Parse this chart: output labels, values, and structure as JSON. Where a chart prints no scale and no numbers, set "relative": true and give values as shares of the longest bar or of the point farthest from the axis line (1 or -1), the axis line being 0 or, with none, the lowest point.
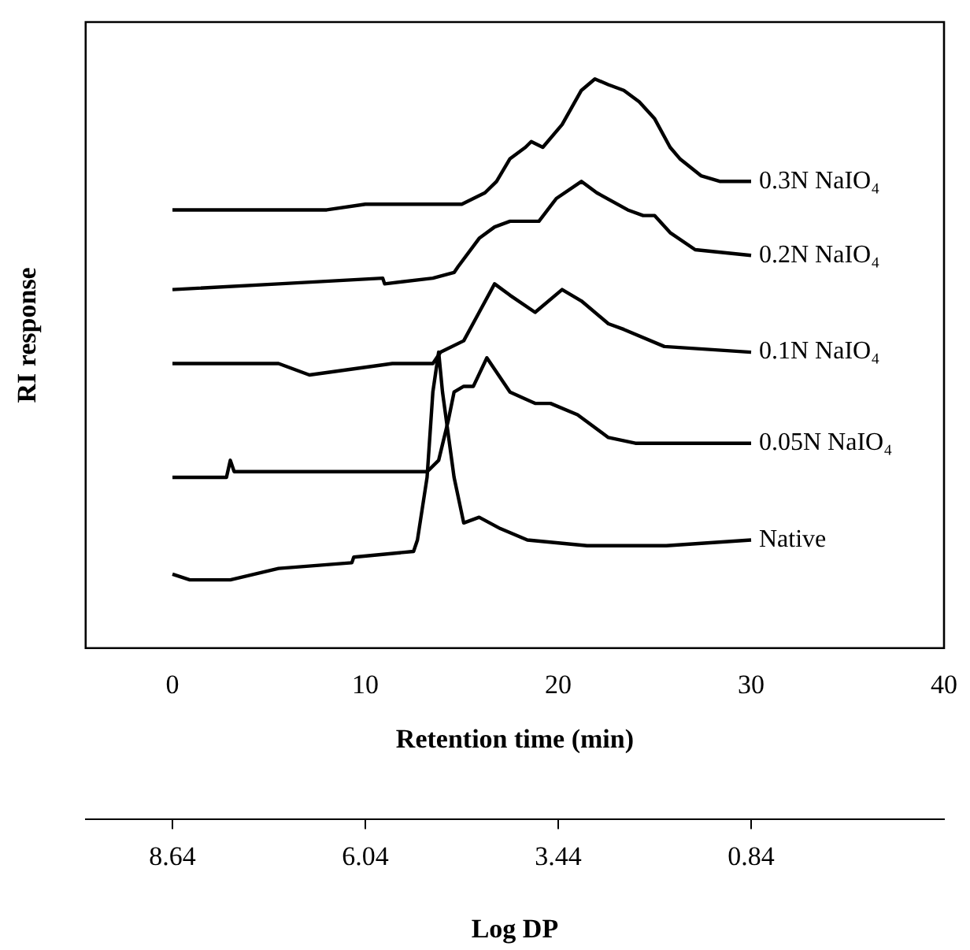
{
  "chart_data": {
    "type": "line",
    "xlabel": "Retention time (min)",
    "ylabel": "RI response",
    "x2label": "Log DP",
    "relative": true,
    "grid": false,
    "legend": false,
    "tick_labels": "x",
    "xlim": [
      -4.5,
      40
    ],
    "xticks": [
      0,
      10,
      20,
      30,
      40
    ],
    "x2lim": [
      9.81,
      -1.76
    ],
    "x2ticks": [
      8.64,
      6.04,
      3.44,
      0.84
    ],
    "series": [
      {
        "name": "0.3N NaIO₄",
        "color": "#000000",
        "x": [
          0,
          5,
          8,
          10,
          12,
          15,
          16.2,
          16.8,
          17.5,
          18.3,
          18.6,
          19.2,
          20.2,
          21.2,
          21.9,
          22.6,
          23.4,
          24.2,
          25,
          25.8,
          26.3,
          27.4,
          28.4,
          30
        ],
        "values": [
          0.77,
          0.77,
          0.77,
          0.78,
          0.78,
          0.78,
          0.8,
          0.82,
          0.86,
          0.88,
          0.89,
          0.88,
          0.92,
          0.98,
          1,
          0.99,
          0.98,
          0.96,
          0.93,
          0.88,
          0.86,
          0.83,
          0.82,
          0.82
        ]
      },
      {
        "name": "0.2N NaIO₄",
        "color": "#000000",
        "x": [
          0,
          5.5,
          10.9,
          11,
          13.5,
          14.6,
          14.8,
          15.9,
          16.7,
          17.5,
          18.3,
          19,
          19.9,
          21.2,
          22,
          23.6,
          24.4,
          25,
          25.8,
          27.1,
          30
        ],
        "values": [
          0.63,
          0.64,
          0.65,
          0.64,
          0.65,
          0.66,
          0.67,
          0.72,
          0.74,
          0.75,
          0.75,
          0.75,
          0.79,
          0.82,
          0.8,
          0.77,
          0.76,
          0.76,
          0.73,
          0.7,
          0.69
        ]
      },
      {
        "name": "0.1N NaIO₄",
        "color": "#000000",
        "x": [
          0,
          5.5,
          7.1,
          11.4,
          13.5,
          13.9,
          15.1,
          15.9,
          16.7,
          17.5,
          18.8,
          20.2,
          21.2,
          22.6,
          23.4,
          25.5,
          30
        ],
        "values": [
          0.5,
          0.5,
          0.48,
          0.5,
          0.5,
          0.52,
          0.54,
          0.59,
          0.64,
          0.62,
          0.59,
          0.63,
          0.61,
          0.57,
          0.56,
          0.53,
          0.52
        ]
      },
      {
        "name": "0.05N NaIO₄",
        "color": "#000000",
        "x": [
          0,
          2.8,
          3,
          3.2,
          8.4,
          13.2,
          13.8,
          14.3,
          14.6,
          15.1,
          15.6,
          16.3,
          17.5,
          18.8,
          19.6,
          21,
          22.6,
          24,
          30
        ],
        "values": [
          0.3,
          0.3,
          0.33,
          0.31,
          0.31,
          0.31,
          0.33,
          0.4,
          0.45,
          0.46,
          0.46,
          0.51,
          0.45,
          0.43,
          0.43,
          0.41,
          0.37,
          0.36,
          0.36
        ]
      },
      {
        "name": "Native",
        "color": "#000000",
        "x": [
          0,
          0.9,
          3,
          5.5,
          9.3,
          9.4,
          12.5,
          12.7,
          13.2,
          13.5,
          13.8,
          14,
          14.6,
          15.1,
          15.9,
          17,
          18.4,
          21.5,
          25.6,
          30
        ],
        "values": [
          0.13,
          0.12,
          0.12,
          0.14,
          0.15,
          0.16,
          0.17,
          0.19,
          0.3,
          0.45,
          0.52,
          0.45,
          0.3,
          0.22,
          0.23,
          0.21,
          0.19,
          0.18,
          0.18,
          0.19
        ]
      }
    ]
  }
}
